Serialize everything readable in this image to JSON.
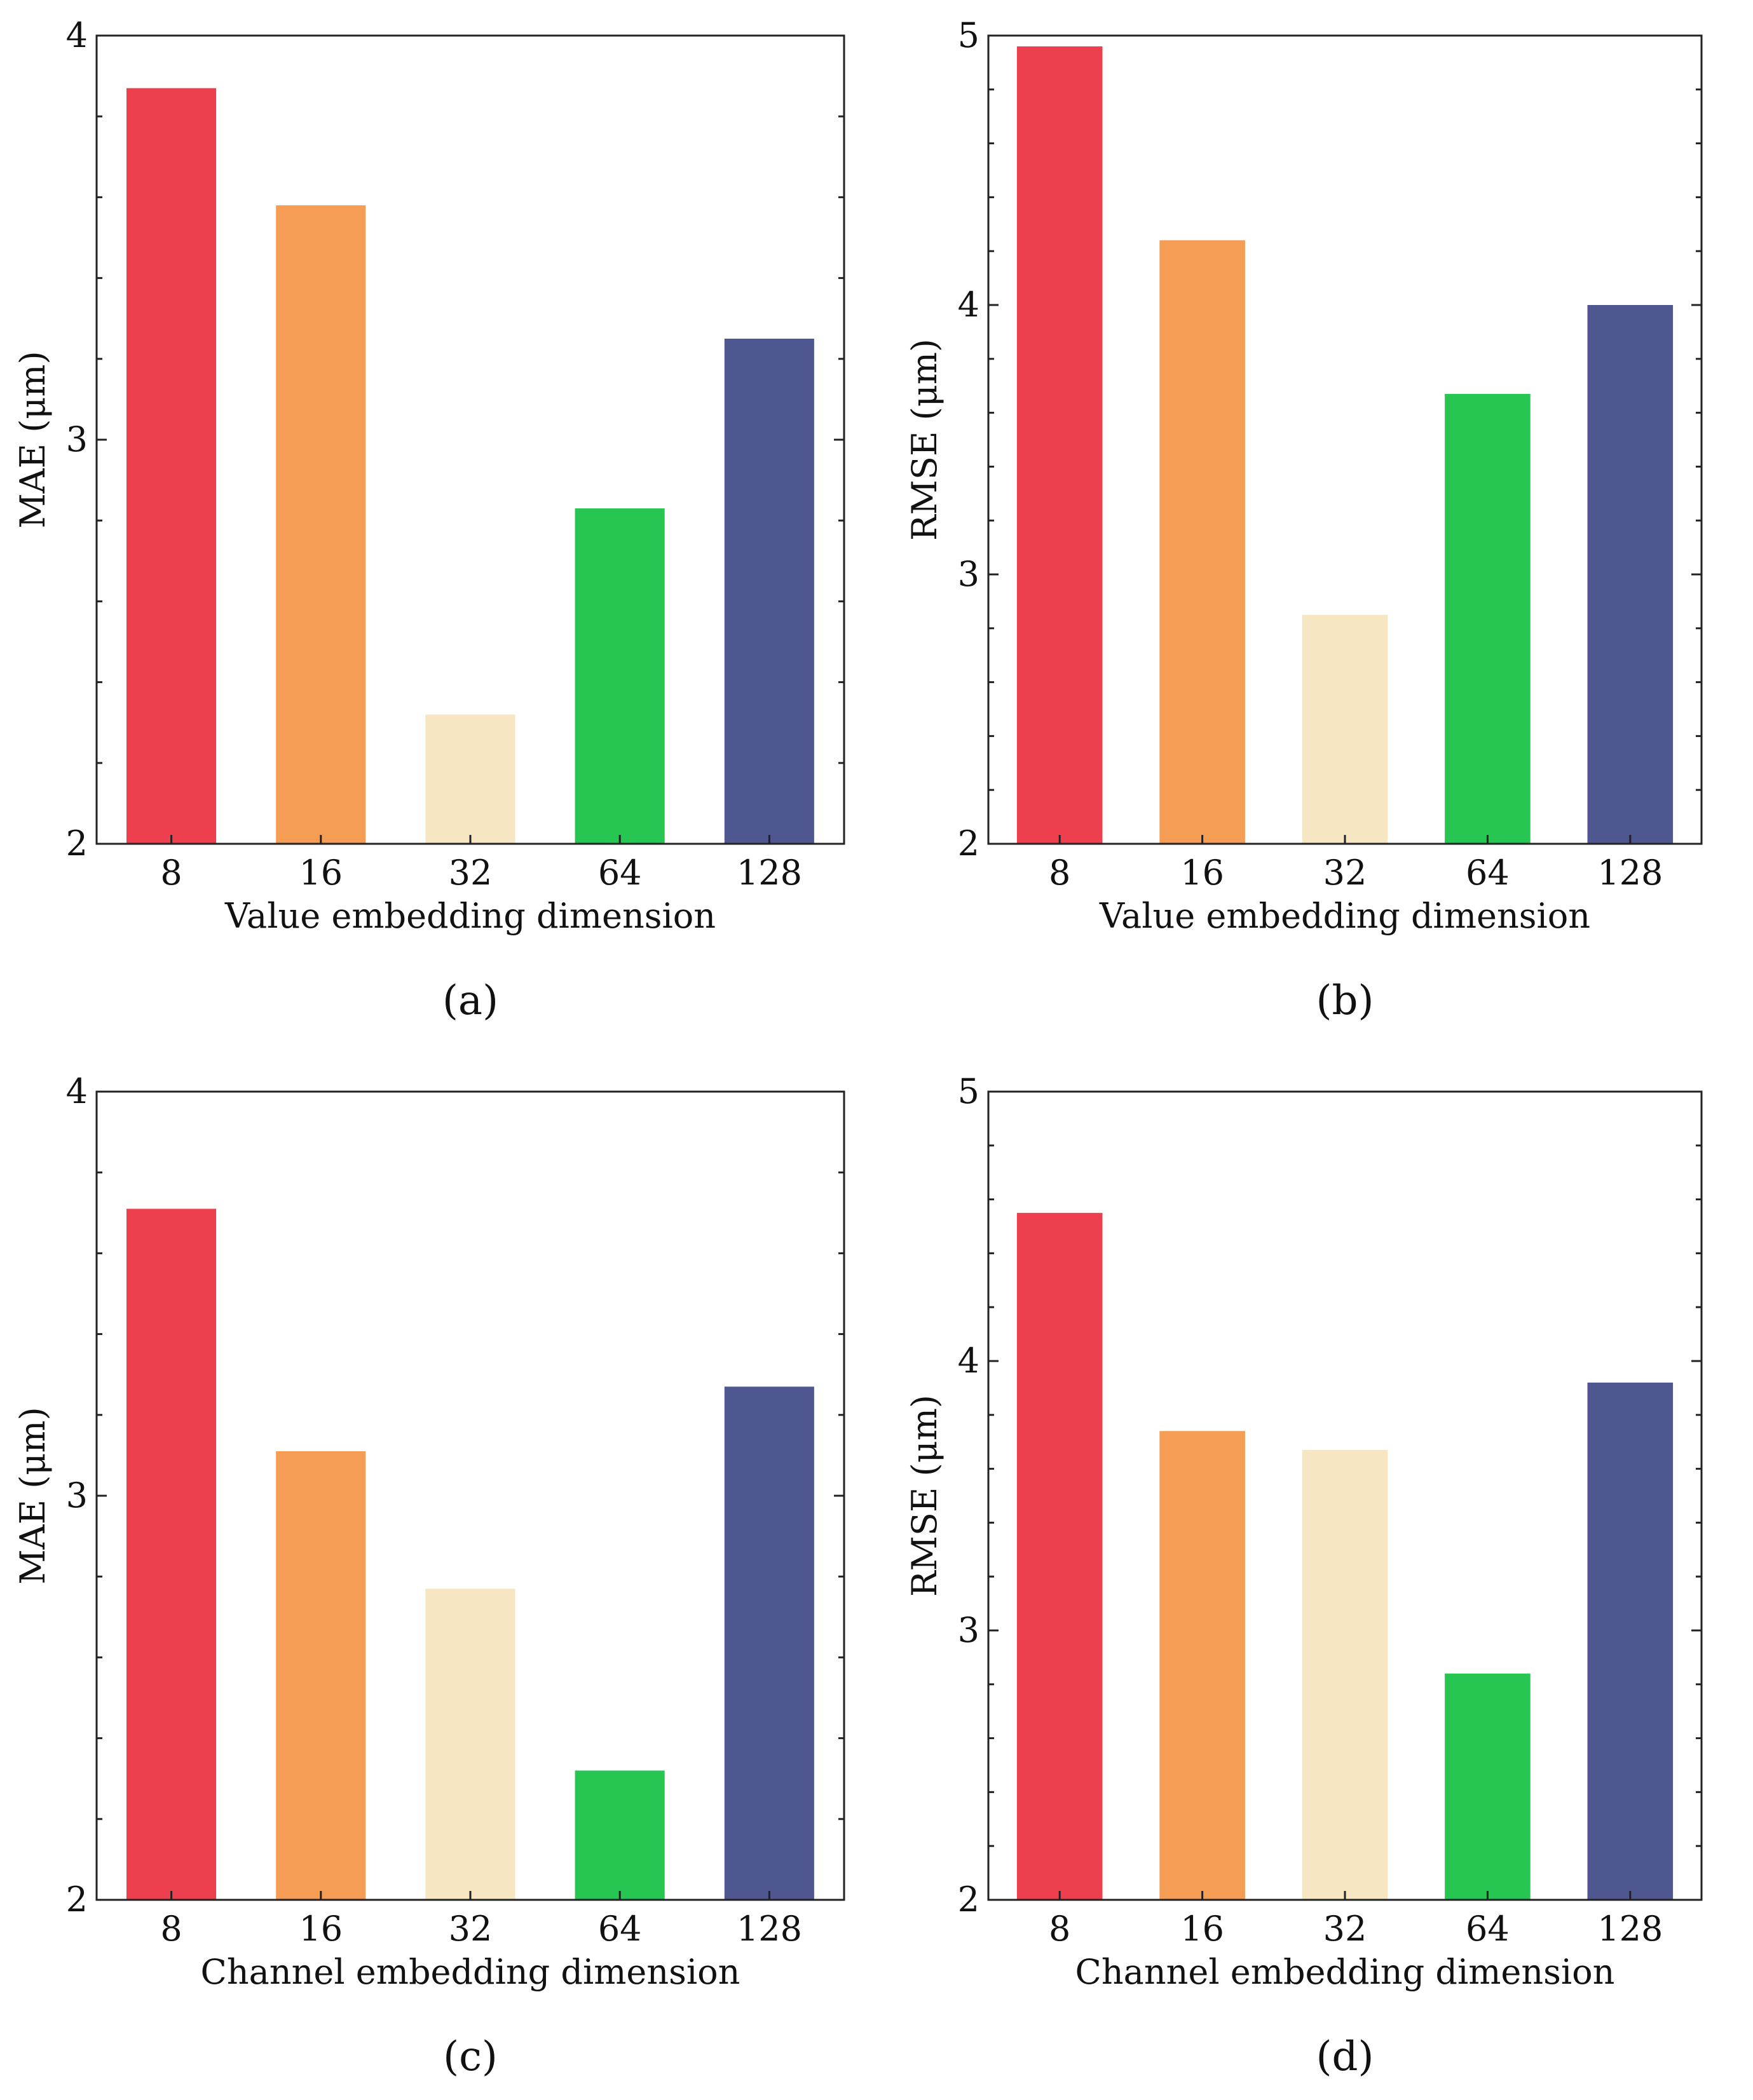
{
  "chart_data": [
    {
      "panel": "(a)",
      "type": "bar",
      "categories": [
        "8",
        "16",
        "32",
        "64",
        "128"
      ],
      "values": [
        3.87,
        3.58,
        2.32,
        2.83,
        3.25
      ],
      "colors": [
        "#ee3f4f",
        "#f69d55",
        "#f6e6c2",
        "#27c653",
        "#4e578f"
      ],
      "xlabel": "Value embedding dimension",
      "ylabel": "MAE (μm)",
      "ylim": [
        2,
        4
      ],
      "yticks": [
        "2",
        "3",
        "4"
      ],
      "grid": false
    },
    {
      "panel": "(b)",
      "type": "bar",
      "categories": [
        "8",
        "16",
        "32",
        "64",
        "128"
      ],
      "values": [
        4.96,
        4.24,
        2.85,
        3.67,
        4.0
      ],
      "colors": [
        "#ee3f4f",
        "#f69d55",
        "#f6e6c2",
        "#27c653",
        "#4e578f"
      ],
      "xlabel": "Value embedding dimension",
      "ylabel": "RMSE (μm)",
      "ylim": [
        2,
        5
      ],
      "yticks": [
        "2",
        "3",
        "4",
        "5"
      ],
      "grid": false
    },
    {
      "panel": "(c)",
      "type": "bar",
      "categories": [
        "8",
        "16",
        "32",
        "64",
        "128"
      ],
      "values": [
        3.71,
        3.11,
        2.77,
        2.32,
        3.27
      ],
      "colors": [
        "#ee3f4f",
        "#f69d55",
        "#f6e6c2",
        "#27c653",
        "#4e578f"
      ],
      "xlabel": "Channel embedding dimension",
      "ylabel": "MAE (μm)",
      "ylim": [
        2,
        4
      ],
      "yticks": [
        "2",
        "3",
        "4"
      ],
      "grid": false
    },
    {
      "panel": "(d)",
      "type": "bar",
      "categories": [
        "8",
        "16",
        "32",
        "64",
        "128"
      ],
      "values": [
        4.55,
        3.74,
        3.67,
        2.84,
        3.92
      ],
      "colors": [
        "#ee3f4f",
        "#f69d55",
        "#f6e6c2",
        "#27c653",
        "#4e578f"
      ],
      "xlabel": "Channel embedding dimension",
      "ylabel": "RMSE (μm)",
      "ylim": [
        2,
        5
      ],
      "yticks": [
        "2",
        "3",
        "4",
        "5"
      ],
      "grid": false
    }
  ]
}
